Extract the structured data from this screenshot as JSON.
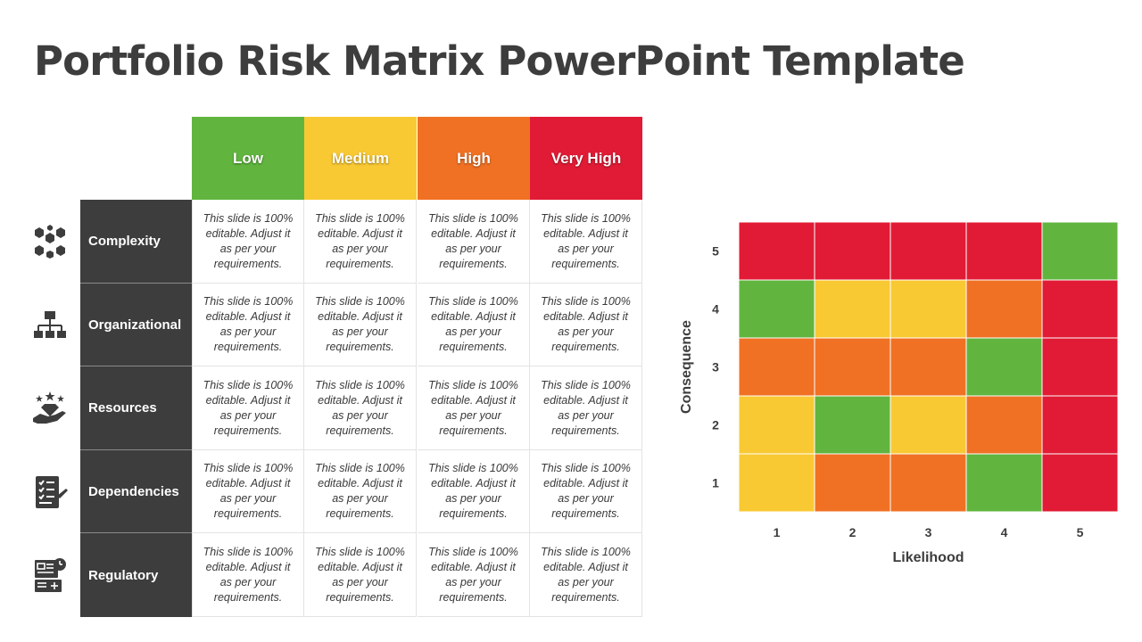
{
  "title": "Portfolio Risk Matrix PowerPoint Template",
  "risk_table": {
    "columns": [
      {
        "label": "Low",
        "color": "#61b53f"
      },
      {
        "label": "Medium",
        "color": "#f9c933"
      },
      {
        "label": "High",
        "color": "#f07124"
      },
      {
        "label": "Very High",
        "color": "#e11b35"
      }
    ],
    "rows": [
      {
        "label": "Complexity",
        "icon": "hexagon-network-icon",
        "cells": [
          "This slide is 100% editable. Adjust it as per your requirements.",
          "This slide is 100% editable. Adjust it as per your requirements.",
          "This slide is 100% editable. Adjust it as per your requirements.",
          "This slide is 100% editable. Adjust it as per your requirements."
        ]
      },
      {
        "label": "Organizational",
        "icon": "org-chart-icon",
        "cells": [
          "This slide is 100% editable. Adjust it as per your requirements.",
          "This slide is 100% editable. Adjust it as per your requirements.",
          "This slide is 100% editable. Adjust it as per your requirements.",
          "This slide is 100% editable. Adjust it as per your requirements."
        ]
      },
      {
        "label": "Resources",
        "icon": "hand-diamond-icon",
        "cells": [
          "This slide is 100% editable. Adjust it as per your requirements.",
          "This slide is 100% editable. Adjust it as per your requirements.",
          "This slide is 100% editable. Adjust it as per your requirements.",
          "This slide is 100% editable. Adjust it as per your requirements."
        ]
      },
      {
        "label": "Dependencies",
        "icon": "checklist-icon",
        "cells": [
          "This slide is 100% editable. Adjust it as per your requirements.",
          "This slide is 100% editable. Adjust it as per your requirements.",
          "This slide is 100% editable. Adjust it as per your requirements.",
          "This slide is 100% editable. Adjust it as per your requirements."
        ]
      },
      {
        "label": "Regulatory",
        "icon": "regulatory-document-icon",
        "cells": [
          "This slide is 100% editable. Adjust it as per your requirements.",
          "This slide is 100% editable. Adjust it as per your requirements.",
          "This slide is 100% editable. Adjust it as per your requirements.",
          "This slide is 100% editable. Adjust it as per your requirements."
        ]
      }
    ]
  },
  "chart_data": {
    "type": "heatmap",
    "xlabel": "Likelihood",
    "ylabel": "Consequence",
    "x_ticks": [
      "1",
      "2",
      "3",
      "4",
      "5"
    ],
    "y_ticks": [
      "1",
      "2",
      "3",
      "4",
      "5"
    ],
    "palette": {
      "green": "#61b53f",
      "yellow": "#f9c933",
      "orange": "#f07124",
      "red": "#e11b35"
    },
    "cells_by_consequence": {
      "5": [
        "red",
        "red",
        "red",
        "red",
        "green"
      ],
      "4": [
        "green",
        "yellow",
        "yellow",
        "orange",
        "red"
      ],
      "3": [
        "orange",
        "orange",
        "orange",
        "green",
        "red"
      ],
      "2": [
        "yellow",
        "green",
        "yellow",
        "orange",
        "red"
      ],
      "1": [
        "yellow",
        "orange",
        "orange",
        "green",
        "red"
      ]
    }
  }
}
